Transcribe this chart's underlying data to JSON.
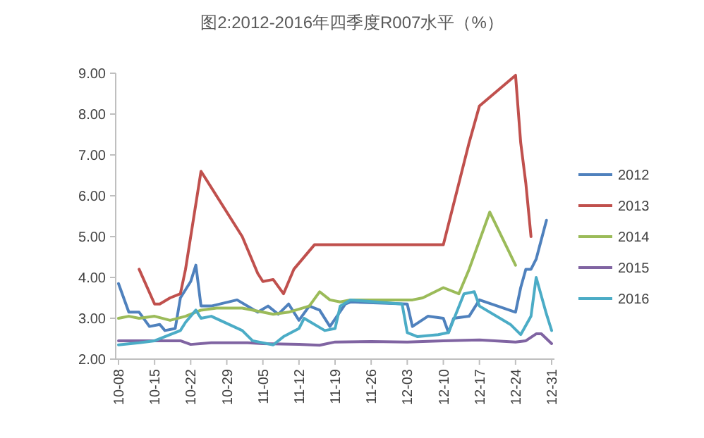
{
  "chart_data": {
    "type": "line",
    "title": "图2:2012-2016年四季度R007水平（%）",
    "xlim": [
      "--10-08",
      "--12-31"
    ],
    "xticks": [
      {
        "value": "--10-08",
        "label": "10-08"
      },
      {
        "value": "--10-15",
        "label": "10-15"
      },
      {
        "value": "--10-22",
        "label": "10-22"
      },
      {
        "value": "--10-29",
        "label": "10-29"
      },
      {
        "value": "--11-05",
        "label": "11-05"
      },
      {
        "value": "--11-12",
        "label": "11-12"
      },
      {
        "value": "--11-19",
        "label": "11-19"
      },
      {
        "value": "--11-26",
        "label": "11-26"
      },
      {
        "value": "--12-03",
        "label": "12-03"
      },
      {
        "value": "--12-10",
        "label": "12-10"
      },
      {
        "value": "--12-17",
        "label": "12-17"
      },
      {
        "value": "--12-24",
        "label": "12-24"
      },
      {
        "value": "--12-31",
        "label": "12-31"
      }
    ],
    "ylim": [
      2,
      9
    ],
    "yticks": [
      {
        "value": 2,
        "label": "2.00"
      },
      {
        "value": 3,
        "label": "3.00"
      },
      {
        "value": 4,
        "label": "4.00"
      },
      {
        "value": 5,
        "label": "5.00"
      },
      {
        "value": 6,
        "label": "6.00"
      },
      {
        "value": 7,
        "label": "7.00"
      },
      {
        "value": 8,
        "label": "8.00"
      },
      {
        "value": 9,
        "label": "9.00"
      }
    ],
    "legend": "right",
    "series": [
      {
        "name": "2012",
        "color": "#4f81bd",
        "x": [
          "--10-08",
          "--10-10",
          "--10-12",
          "--10-14",
          "--10-16",
          "--10-17",
          "--10-19",
          "--10-20",
          "--10-22",
          "--10-23",
          "--10-24",
          "--10-26",
          "--10-31",
          "--11-04",
          "--11-06",
          "--11-08",
          "--11-10",
          "--11-12",
          "--11-14",
          "--11-16",
          "--11-18",
          "--11-21",
          "--11-22",
          "--12-03",
          "--12-04",
          "--12-07",
          "--12-10",
          "--12-11",
          "--12-12",
          "--12-15",
          "--12-17",
          "--12-24",
          "--12-25",
          "--12-26",
          "--12-27",
          "--12-28",
          "--12-30"
        ],
        "values": [
          3.85,
          3.15,
          3.15,
          2.8,
          2.85,
          2.7,
          2.75,
          3.5,
          3.9,
          4.3,
          3.3,
          3.3,
          3.45,
          3.15,
          3.3,
          3.1,
          3.35,
          2.95,
          3.3,
          3.2,
          2.8,
          3.35,
          3.4,
          3.35,
          2.8,
          3.05,
          3.0,
          2.65,
          3.0,
          3.05,
          3.45,
          3.15,
          3.75,
          4.2,
          4.2,
          4.45,
          5.4
        ]
      },
      {
        "name": "2013",
        "color": "#c0504d",
        "x": [
          "--10-12",
          "--10-15",
          "--10-16",
          "--10-18",
          "--10-20",
          "--10-21",
          "--10-24",
          "--11-01",
          "--11-04",
          "--11-05",
          "--11-07",
          "--11-09",
          "--11-11",
          "--11-15",
          "--12-10",
          "--12-15",
          "--12-17",
          "--12-24",
          "--12-25",
          "--12-26",
          "--12-27"
        ],
        "values": [
          4.2,
          3.35,
          3.35,
          3.5,
          3.6,
          4.2,
          6.6,
          5.0,
          4.1,
          3.9,
          3.95,
          3.6,
          4.2,
          4.8,
          4.8,
          7.3,
          8.2,
          8.95,
          7.3,
          6.3,
          5.0
        ]
      },
      {
        "name": "2014",
        "color": "#9bbb59",
        "x": [
          "--10-08",
          "--10-10",
          "--10-12",
          "--10-15",
          "--10-18",
          "--10-21",
          "--10-24",
          "--10-27",
          "--11-01",
          "--11-05",
          "--11-07",
          "--11-10",
          "--11-14",
          "--11-16",
          "--11-18",
          "--11-20",
          "--11-22",
          "--11-29",
          "--12-04",
          "--12-06",
          "--12-10",
          "--12-13",
          "--12-15",
          "--12-19",
          "--12-24"
        ],
        "values": [
          3.0,
          3.05,
          3.0,
          3.05,
          2.95,
          3.05,
          3.2,
          3.25,
          3.25,
          3.15,
          3.1,
          3.15,
          3.3,
          3.65,
          3.45,
          3.4,
          3.45,
          3.45,
          3.45,
          3.5,
          3.75,
          3.6,
          4.2,
          5.6,
          4.3
        ]
      },
      {
        "name": "2015",
        "color": "#8064a2",
        "x": [
          "--10-08",
          "--10-10",
          "--10-15",
          "--10-20",
          "--10-22",
          "--10-26",
          "--11-02",
          "--11-05",
          "--11-12",
          "--11-16",
          "--11-19",
          "--11-26",
          "--12-03",
          "--12-10",
          "--12-17",
          "--12-24",
          "--12-26",
          "--12-28",
          "--12-29",
          "--12-31"
        ],
        "values": [
          2.45,
          2.45,
          2.45,
          2.45,
          2.36,
          2.4,
          2.4,
          2.38,
          2.36,
          2.34,
          2.42,
          2.43,
          2.42,
          2.45,
          2.47,
          2.42,
          2.45,
          2.62,
          2.62,
          2.38
        ]
      },
      {
        "name": "2016",
        "color": "#4bacc6",
        "x": [
          "--10-08",
          "--10-12",
          "--10-15",
          "--10-20",
          "--10-21",
          "--10-23",
          "--10-24",
          "--10-26",
          "--11-01",
          "--11-03",
          "--11-07",
          "--11-09",
          "--11-12",
          "--11-13",
          "--11-17",
          "--11-19",
          "--11-20",
          "--11-22",
          "--12-02",
          "--12-03",
          "--12-05",
          "--12-09",
          "--12-11",
          "--12-14",
          "--12-16",
          "--12-17",
          "--12-23",
          "--12-25",
          "--12-27",
          "--12-28",
          "--12-30",
          "--12-31"
        ],
        "values": [
          2.35,
          2.4,
          2.45,
          2.7,
          2.9,
          3.2,
          3.0,
          3.05,
          2.7,
          2.45,
          2.35,
          2.55,
          2.75,
          3.0,
          2.7,
          2.75,
          3.3,
          3.45,
          3.35,
          2.65,
          2.55,
          2.6,
          2.65,
          3.6,
          3.65,
          3.3,
          2.85,
          2.6,
          3.05,
          4.0,
          3.1,
          2.7
        ]
      }
    ]
  }
}
